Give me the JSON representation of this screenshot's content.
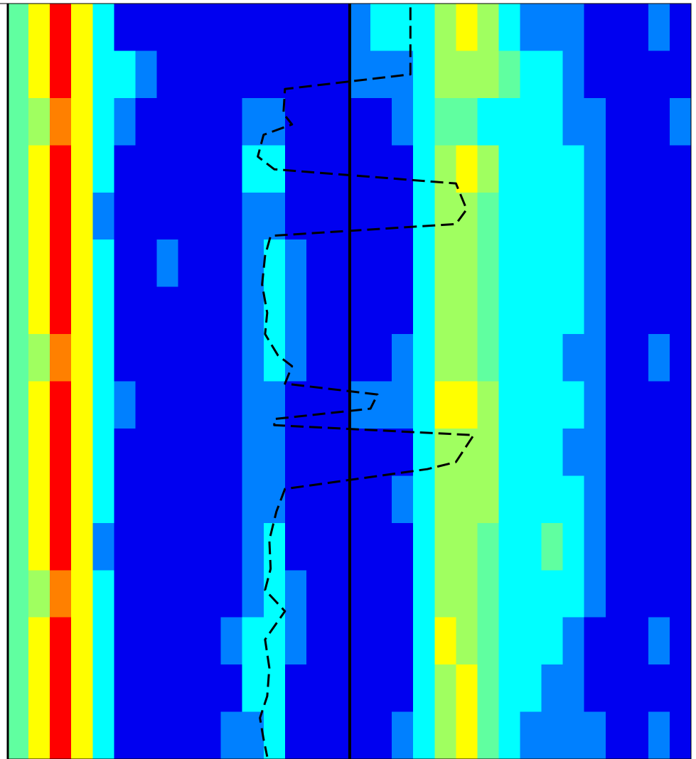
{
  "chart_data": {
    "type": "heatmap",
    "xlim": [
      0,
      32
    ],
    "ylim": [
      0,
      16
    ],
    "y_inverted": true,
    "zlim": [
      0,
      1
    ],
    "colormap": [
      "#0000f0",
      "#0080ff",
      "#00ffff",
      "#60ffa0",
      "#a0ff60",
      "#ffff00",
      "#ff8000",
      "#ff0000"
    ],
    "values": [
      [
        0.4,
        0.7,
        1.0,
        0.7,
        0.3,
        0.05,
        0.02,
        0.02,
        0.02,
        0.02,
        0.02,
        0.02,
        0.02,
        0.02,
        0.05,
        0.02,
        0.2,
        0.25,
        0.3,
        0.35,
        0.55,
        0.7,
        0.5,
        0.3,
        0.2,
        0.15,
        0.08,
        0.03,
        0.03,
        0.03,
        0.08,
        0.03
      ],
      [
        0.45,
        0.7,
        1.0,
        0.75,
        0.25,
        0.22,
        0.1,
        0.02,
        0.02,
        0.02,
        0.02,
        0.02,
        0.02,
        0.02,
        0.02,
        0.02,
        0.08,
        0.1,
        0.2,
        0.3,
        0.5,
        0.6,
        0.5,
        0.4,
        0.35,
        0.3,
        0.2,
        0.05,
        0.03,
        0.03,
        0.03,
        0.03
      ],
      [
        0.45,
        0.6,
        0.8,
        0.7,
        0.35,
        0.1,
        0.02,
        0.02,
        0.02,
        0.02,
        0.02,
        0.15,
        0.2,
        0.05,
        0.02,
        0.02,
        0.02,
        0.02,
        0.1,
        0.3,
        0.4,
        0.45,
        0.35,
        0.3,
        0.25,
        0.25,
        0.2,
        0.1,
        0.05,
        0.03,
        0.03,
        0.1
      ],
      [
        0.45,
        0.7,
        1.0,
        0.75,
        0.25,
        0.02,
        0.02,
        0.02,
        0.02,
        0.02,
        0.02,
        0.25,
        0.3,
        0.05,
        0.02,
        0.02,
        0.02,
        0.02,
        0.02,
        0.3,
        0.6,
        0.7,
        0.5,
        0.35,
        0.3,
        0.35,
        0.25,
        0.12,
        0.03,
        0.03,
        0.03,
        0.03
      ],
      [
        0.4,
        0.7,
        1.0,
        0.75,
        0.2,
        0.02,
        0.02,
        0.02,
        0.02,
        0.02,
        0.02,
        0.1,
        0.15,
        0.02,
        0.02,
        0.02,
        0.02,
        0.02,
        0.05,
        0.35,
        0.55,
        0.6,
        0.45,
        0.3,
        0.35,
        0.3,
        0.3,
        0.15,
        0.03,
        0.03,
        0.03,
        0.03
      ],
      [
        0.45,
        0.7,
        1.0,
        0.75,
        0.25,
        0.02,
        0.02,
        0.1,
        0.02,
        0.02,
        0.02,
        0.2,
        0.3,
        0.1,
        0.02,
        0.02,
        0.02,
        0.02,
        0.05,
        0.3,
        0.55,
        0.6,
        0.45,
        0.3,
        0.3,
        0.3,
        0.25,
        0.15,
        0.03,
        0.03,
        0.03,
        0.03
      ],
      [
        0.45,
        0.7,
        1.0,
        0.75,
        0.25,
        0.02,
        0.02,
        0.02,
        0.02,
        0.02,
        0.02,
        0.2,
        0.25,
        0.1,
        0.02,
        0.02,
        0.02,
        0.02,
        0.05,
        0.3,
        0.5,
        0.55,
        0.45,
        0.35,
        0.3,
        0.35,
        0.3,
        0.15,
        0.05,
        0.03,
        0.05,
        0.03
      ],
      [
        0.45,
        0.6,
        0.85,
        0.7,
        0.3,
        0.05,
        0.02,
        0.02,
        0.02,
        0.02,
        0.02,
        0.2,
        0.25,
        0.2,
        0.02,
        0.02,
        0.02,
        0.02,
        0.1,
        0.3,
        0.5,
        0.55,
        0.4,
        0.3,
        0.25,
        0.3,
        0.2,
        0.1,
        0.03,
        0.05,
        0.08,
        0.03
      ],
      [
        0.45,
        0.7,
        1.0,
        0.75,
        0.3,
        0.15,
        0.02,
        0.02,
        0.02,
        0.02,
        0.02,
        0.15,
        0.2,
        0.05,
        0.02,
        0.05,
        0.1,
        0.15,
        0.2,
        0.35,
        0.65,
        0.7,
        0.5,
        0.35,
        0.3,
        0.3,
        0.25,
        0.1,
        0.03,
        0.03,
        0.05,
        0.05
      ],
      [
        0.45,
        0.7,
        1.0,
        0.75,
        0.25,
        0.05,
        0.02,
        0.02,
        0.02,
        0.02,
        0.02,
        0.2,
        0.2,
        0.05,
        0.02,
        0.02,
        0.02,
        0.02,
        0.05,
        0.35,
        0.55,
        0.6,
        0.5,
        0.35,
        0.3,
        0.3,
        0.2,
        0.1,
        0.03,
        0.03,
        0.03,
        0.03
      ],
      [
        0.45,
        0.7,
        1.0,
        0.75,
        0.25,
        0.02,
        0.02,
        0.02,
        0.02,
        0.02,
        0.02,
        0.15,
        0.2,
        0.05,
        0.02,
        0.02,
        0.02,
        0.02,
        0.1,
        0.35,
        0.55,
        0.6,
        0.5,
        0.35,
        0.3,
        0.3,
        0.25,
        0.1,
        0.03,
        0.03,
        0.03,
        0.03
      ],
      [
        0.4,
        0.7,
        1.0,
        0.75,
        0.2,
        0.02,
        0.02,
        0.02,
        0.02,
        0.02,
        0.02,
        0.2,
        0.25,
        0.05,
        0.02,
        0.02,
        0.02,
        0.02,
        0.05,
        0.3,
        0.6,
        0.6,
        0.45,
        0.25,
        0.35,
        0.45,
        0.3,
        0.1,
        0.03,
        0.03,
        0.03,
        0.03
      ],
      [
        0.45,
        0.6,
        0.85,
        0.7,
        0.3,
        0.05,
        0.02,
        0.02,
        0.02,
        0.02,
        0.02,
        0.2,
        0.3,
        0.15,
        0.02,
        0.02,
        0.02,
        0.02,
        0.05,
        0.3,
        0.5,
        0.55,
        0.4,
        0.25,
        0.3,
        0.35,
        0.25,
        0.1,
        0.03,
        0.03,
        0.05,
        0.03
      ],
      [
        0.45,
        0.7,
        1.0,
        0.75,
        0.25,
        0.02,
        0.02,
        0.02,
        0.02,
        0.02,
        0.1,
        0.3,
        0.35,
        0.1,
        0.02,
        0.02,
        0.02,
        0.02,
        0.05,
        0.35,
        0.65,
        0.6,
        0.45,
        0.3,
        0.35,
        0.25,
        0.15,
        0.05,
        0.03,
        0.03,
        0.1,
        0.05
      ],
      [
        0.45,
        0.7,
        1.0,
        0.75,
        0.25,
        0.02,
        0.02,
        0.02,
        0.02,
        0.02,
        0.02,
        0.25,
        0.3,
        0.05,
        0.02,
        0.02,
        0.02,
        0.02,
        0.05,
        0.3,
        0.6,
        0.65,
        0.45,
        0.3,
        0.25,
        0.2,
        0.15,
        0.05,
        0.03,
        0.03,
        0.05,
        0.03
      ],
      [
        0.45,
        0.7,
        1.0,
        0.75,
        0.25,
        0.02,
        0.02,
        0.02,
        0.02,
        0.02,
        0.1,
        0.2,
        0.25,
        0.05,
        0.02,
        0.02,
        0.02,
        0.02,
        0.1,
        0.35,
        0.6,
        0.7,
        0.45,
        0.3,
        0.2,
        0.2,
        0.15,
        0.1,
        0.03,
        0.03,
        0.08,
        0.03
      ]
    ],
    "lines": [
      {
        "color": "#000000",
        "dashed": true,
        "x": [
          18.87,
          18.87,
          13.0,
          12.93,
          13.33,
          12.0,
          11.73,
          12.5,
          21.0,
          21.5,
          21.0,
          12.33,
          12.07,
          11.93,
          12.17,
          12.07,
          12.67,
          13.33,
          13.0,
          17.33,
          17.0,
          12.5,
          12.5,
          21.83,
          21.0,
          19.67,
          13.0,
          12.6,
          12.27,
          12.33,
          12.07,
          13.0,
          12.07,
          12.27,
          12.17,
          11.83,
          12.0,
          12.17
        ],
        "y": [
          0.08,
          1.5,
          1.81,
          2.33,
          2.56,
          2.78,
          3.24,
          3.51,
          3.81,
          4.36,
          4.67,
          4.92,
          5.34,
          5.95,
          6.55,
          7.0,
          7.45,
          7.68,
          8.05,
          8.28,
          8.58,
          8.8,
          8.93,
          9.14,
          9.71,
          9.86,
          10.28,
          10.76,
          11.36,
          11.97,
          12.42,
          12.87,
          13.47,
          14.07,
          14.67,
          15.13,
          15.58,
          15.95
        ]
      }
    ],
    "vlines": [
      {
        "x": 16.03,
        "color": "#000000"
      }
    ]
  }
}
